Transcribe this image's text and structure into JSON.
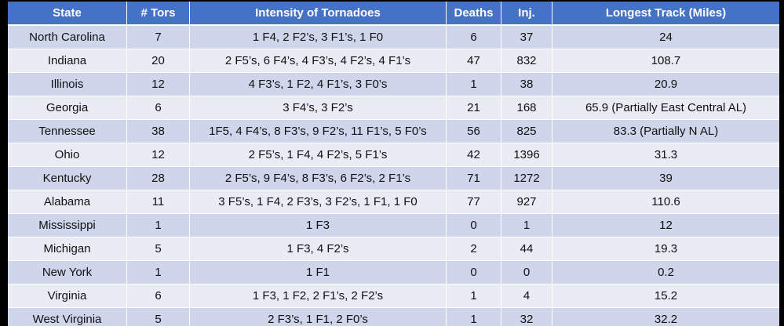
{
  "table": {
    "headers": [
      "State",
      "# Tors",
      "Intensity of Tornadoes",
      "Deaths",
      "Inj.",
      "Longest Track (Miles)"
    ],
    "rows": [
      [
        "North Carolina",
        "7",
        "1 F4, 2 F2’s, 3 F1’s, 1 F0",
        "6",
        "37",
        "24"
      ],
      [
        "Indiana",
        "20",
        "2 F5’s, 6 F4’s, 4 F3’s, 4 F2’s, 4 F1’s",
        "47",
        "832",
        "108.7"
      ],
      [
        "Illinois",
        "12",
        "4 F3’s, 1 F2, 4 F1’s, 3 F0’s",
        "1",
        "38",
        "20.9"
      ],
      [
        "Georgia",
        "6",
        "3 F4’s, 3 F2’s",
        "21",
        "168",
        "65.9 (Partially East Central AL)"
      ],
      [
        "Tennessee",
        "38",
        "1F5, 4 F4’s, 8 F3’s, 9 F2’s, 11 F1’s, 5 F0’s",
        "56",
        "825",
        "83.3 (Partially N AL)"
      ],
      [
        "Ohio",
        "12",
        "2 F5’s, 1 F4, 4 F2’s, 5 F1’s",
        "42",
        "1396",
        "31.3"
      ],
      [
        "Kentucky",
        "28",
        "2 F5’s, 9 F4’s, 8 F3’s, 6 F2’s, 2 F1’s",
        "71",
        "1272",
        "39"
      ],
      [
        "Alabama",
        "11",
        "3 F5’s, 1 F4, 2 F3’s, 3 F2’s, 1 F1, 1 F0",
        "77",
        "927",
        "110.6"
      ],
      [
        "Mississippi",
        "1",
        "1 F3",
        "0",
        "1",
        "12"
      ],
      [
        "Michigan",
        "5",
        "1 F3, 4 F2’s",
        "2",
        "44",
        "19.3"
      ],
      [
        "New York",
        "1",
        "1 F1",
        "0",
        "0",
        "0.2"
      ],
      [
        "Virginia",
        "6",
        "1 F3, 1 F2, 2 F1’s, 2 F2’s",
        "1",
        "4",
        "15.2"
      ],
      [
        "West Virginia",
        "5",
        "2 F3’s, 1 F1, 2 F0’s",
        "1",
        "32",
        "32.2"
      ]
    ]
  },
  "colors": {
    "header": "#4472c4",
    "row_odd": "#cfd5ea",
    "row_even": "#e9ebf5",
    "background": "#000000"
  }
}
